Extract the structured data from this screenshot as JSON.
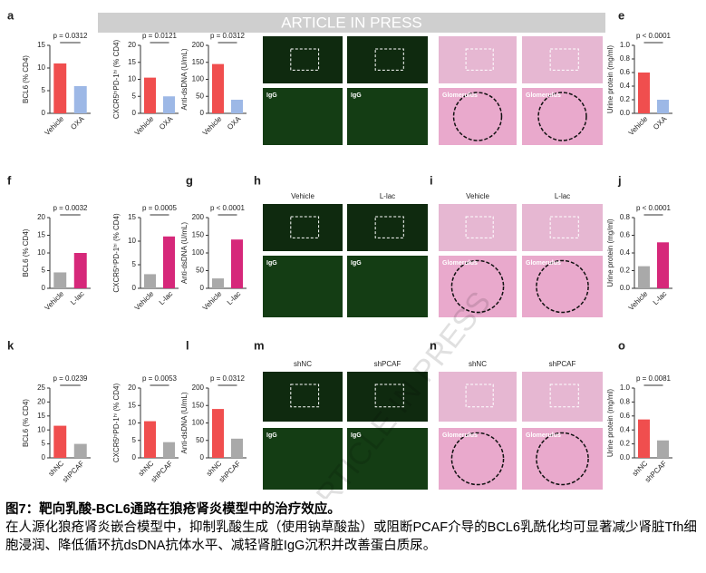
{
  "watermark": "ARTICLE IN PRESS",
  "chart_data": [
    {
      "type": "bar",
      "panel": "a",
      "ylabel": "BCL6 (% CD4)",
      "p_value": "p = 0.0312",
      "categories": [
        "Vehicle",
        "OXA"
      ],
      "values": [
        11,
        6
      ],
      "colors": [
        "#f04e4e",
        "#9db8e6"
      ],
      "ylim": [
        0,
        15
      ],
      "yticks": [
        0,
        5,
        10,
        15
      ]
    },
    {
      "type": "bar",
      "ylabel": "CXCR5ʰⁱPD-1ʰⁱ (% CD4)",
      "p_value": "p = 0.0121",
      "categories": [
        "Vehicle",
        "OXA"
      ],
      "values": [
        10.5,
        5
      ],
      "colors": [
        "#f04e4e",
        "#9db8e6"
      ],
      "ylim": [
        0,
        20
      ],
      "yticks": [
        0,
        5,
        10,
        15,
        20
      ]
    },
    {
      "type": "bar",
      "ylabel": "Anti-dsDNA (U/mL)",
      "p_value": "p = 0.0312",
      "categories": [
        "Vehicle",
        "OXA"
      ],
      "values": [
        145,
        40
      ],
      "colors": [
        "#f04e4e",
        "#9db8e6"
      ],
      "ylim": [
        0,
        200
      ],
      "yticks": [
        0,
        50,
        100,
        150,
        200
      ]
    },
    {
      "type": "bar",
      "panel": "e",
      "ylabel": "Urine protein (mg/ml)",
      "p_value": "p < 0.0001",
      "categories": [
        "Vehicle",
        "OXA"
      ],
      "values": [
        0.6,
        0.2
      ],
      "colors": [
        "#f04e4e",
        "#9db8e6"
      ],
      "ylim": [
        0,
        1
      ],
      "yticks": [
        {
          "value": 0,
          "label": "0.0"
        },
        0.2,
        0.4,
        0.6,
        0.8,
        {
          "value": 1,
          "label": "1.0"
        }
      ]
    },
    {
      "type": "bar",
      "panel": "f",
      "ylabel": "BCL6 (% CD4)",
      "p_value": "p = 0.0032",
      "categories": [
        "Vehicle",
        "L-lac"
      ],
      "values": [
        4.5,
        10
      ],
      "colors": [
        "#a9a9a9",
        "#d6287a"
      ],
      "ylim": [
        0,
        20
      ],
      "yticks": [
        0,
        5,
        10,
        15,
        20
      ]
    },
    {
      "type": "bar",
      "ylabel": "CXCR5ʰⁱPD-1ʰⁱ (% CD4)",
      "p_value": "p = 0.0005",
      "categories": [
        "Vehicle",
        "L-lac"
      ],
      "values": [
        3,
        11
      ],
      "colors": [
        "#a9a9a9",
        "#d6287a"
      ],
      "ylim": [
        0,
        15
      ],
      "yticks": [
        0,
        5,
        10,
        15
      ]
    },
    {
      "type": "bar",
      "panel": "g",
      "ylabel": "Anti-dsDNA (U/mL)",
      "p_value": "p < 0.0001",
      "categories": [
        "Vehicle",
        "L-lac"
      ],
      "values": [
        28,
        138
      ],
      "colors": [
        "#a9a9a9",
        "#d6287a"
      ],
      "ylim": [
        0,
        200
      ],
      "yticks": [
        0,
        50,
        100,
        150,
        200
      ]
    },
    {
      "type": "bar",
      "panel": "j",
      "ylabel": "Urine protein (mg/ml)",
      "p_value": "p < 0.0001",
      "categories": [
        "Vehicle",
        "L-lac"
      ],
      "values": [
        0.25,
        0.52
      ],
      "colors": [
        "#a9a9a9",
        "#d6287a"
      ],
      "ylim": [
        0,
        0.8
      ],
      "yticks": [
        {
          "value": 0,
          "label": "0.0"
        },
        0.2,
        0.4,
        0.6,
        0.8
      ]
    },
    {
      "type": "bar",
      "panel": "k",
      "ylabel": "BCL6 (% CD4)",
      "p_value": "p = 0.0239",
      "categories": [
        "shNC",
        "shPCAF"
      ],
      "values": [
        11.5,
        5
      ],
      "colors": [
        "#f04e4e",
        "#a9a9a9"
      ],
      "ylim": [
        0,
        25
      ],
      "yticks": [
        0,
        5,
        10,
        15,
        20,
        25
      ]
    },
    {
      "type": "bar",
      "ylabel": "CXCR5ʰⁱPD-1ʰⁱ (% CD4)",
      "p_value": "p = 0.0053",
      "categories": [
        "shNC",
        "shPCAF"
      ],
      "values": [
        10.5,
        4.5
      ],
      "colors": [
        "#f04e4e",
        "#a9a9a9"
      ],
      "ylim": [
        0,
        20
      ],
      "yticks": [
        0,
        5,
        10,
        15,
        20
      ]
    },
    {
      "type": "bar",
      "panel": "l",
      "ylabel": "Anti-dsDNA (U/mL)",
      "p_value": "p = 0.0312",
      "categories": [
        "shNC",
        "shPCAF"
      ],
      "values": [
        140,
        55
      ],
      "colors": [
        "#f04e4e",
        "#a9a9a9"
      ],
      "ylim": [
        0,
        200
      ],
      "yticks": [
        0,
        50,
        100,
        150,
        200
      ]
    },
    {
      "type": "bar",
      "panel": "o",
      "ylabel": "Urine protein (mg/ml)",
      "p_value": "p = 0.0081",
      "categories": [
        "shNC",
        "shPCAF"
      ],
      "values": [
        0.55,
        0.25
      ],
      "colors": [
        "#f04e4e",
        "#a9a9a9"
      ],
      "ylim": [
        0,
        1
      ],
      "yticks": [
        {
          "value": 0,
          "label": "0.0"
        },
        0.2,
        0.4,
        0.6,
        0.8,
        {
          "value": 1,
          "label": "1.0"
        }
      ]
    }
  ],
  "image_panels": [
    {
      "kind": "fluorescence",
      "labels": [
        "IgG",
        "IgG"
      ]
    },
    {
      "kind": "histology",
      "labels": [
        "Glomerulus",
        "Glomerulus"
      ]
    },
    {
      "kind": "fluorescence",
      "panel": "h",
      "headers": [
        "Vehicle",
        "L-lac"
      ],
      "labels": [
        "IgG",
        "IgG"
      ]
    },
    {
      "kind": "histology",
      "panel": "i",
      "headers": [
        "Vehicle",
        "L-lac"
      ],
      "labels": [
        "Glomerulus",
        "Glomerulus"
      ]
    },
    {
      "kind": "fluorescence",
      "panel": "m",
      "headers": [
        "shNC",
        "shPCAF"
      ],
      "labels": [
        "IgG",
        "IgG"
      ]
    },
    {
      "kind": "histology",
      "panel": "n",
      "headers": [
        "shNC",
        "shPCAF"
      ],
      "labels": [
        "Glomerulus",
        "Glomerulus"
      ]
    }
  ],
  "caption": {
    "title": "图7：靶向乳酸-BCL6通路在狼疮肾炎模型中的治疗效应。",
    "body": "在人源化狼疮肾炎嵌合模型中，抑制乳酸生成（使用钠草酸盐）或阻断PCAF介导的BCL6乳酰化均可显著减少肾脏Tfh细胞浸润、降低循环抗dsDNA抗体水平、减轻肾脏IgG沉积并改善蛋白质尿。"
  }
}
